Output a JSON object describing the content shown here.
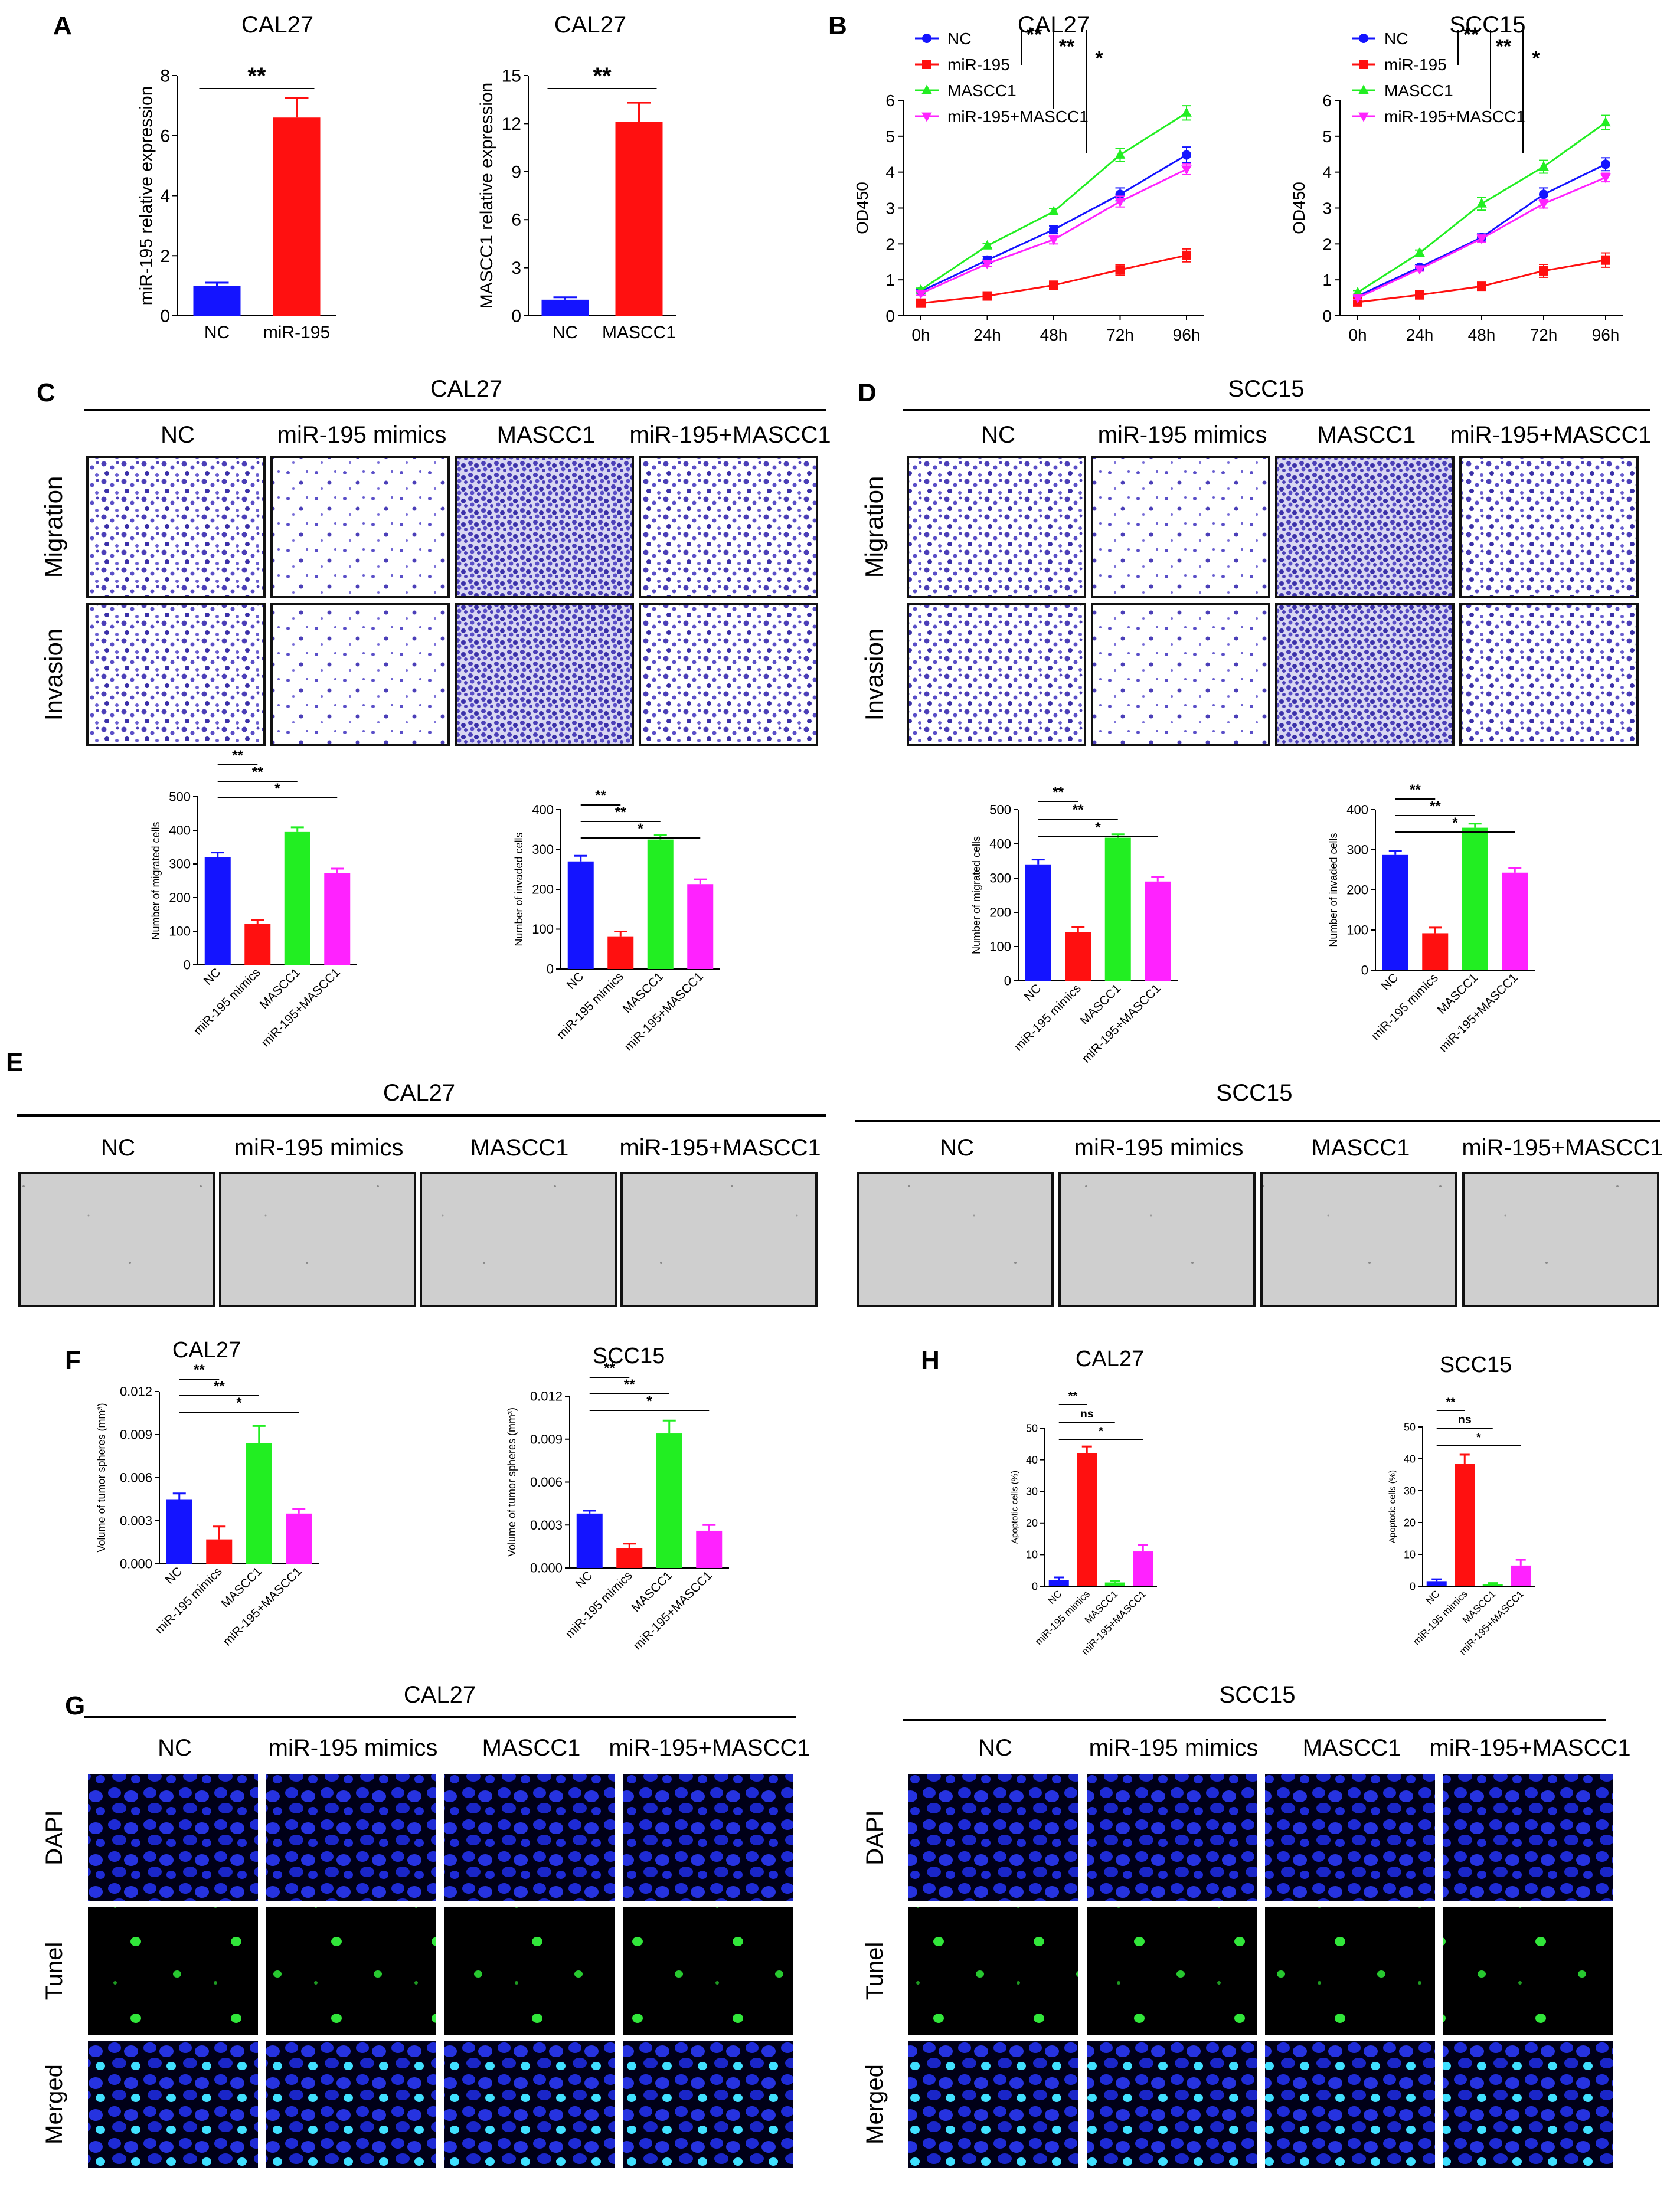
{
  "colors": {
    "blue": "#1414ff",
    "red": "#ff1010",
    "green": "#22ee22",
    "magenta": "#ff22ff",
    "purple": "#4b3fb8",
    "dapi": "#1e2bd6",
    "tunel": "#31e63a",
    "panel_frame": "#111111"
  },
  "panel_letters": {
    "A": "A",
    "B": "B",
    "C": "C",
    "D": "D",
    "E": "E",
    "F": "F",
    "G": "G",
    "H": "H"
  },
  "cells": {
    "cal27": "CAL27",
    "scc15": "SCC15"
  },
  "groups": {
    "nc": "NC",
    "mimics": "miR-195 mimics",
    "mascc1": "MASCC1",
    "combo": "miR-195+MASCC1"
  },
  "rows": {
    "migration": "Migration",
    "invasion": "Invasion",
    "dapi": "DAPI",
    "tunel": "Tunel",
    "merged": "Merged"
  },
  "chart_data": [
    {
      "id": "A1",
      "type": "bar",
      "title": "CAL27",
      "ylabel": "miR-195 relative expression",
      "categories": [
        "NC",
        "miR-195"
      ],
      "values": [
        1.0,
        6.6
      ],
      "errors": [
        0.1,
        0.65
      ],
      "ylim": [
        0,
        8
      ],
      "yticks": [
        0,
        2,
        4,
        6,
        8
      ],
      "colors": [
        "#1414ff",
        "#ff1010"
      ],
      "significance": [
        {
          "from": 0,
          "to": 1,
          "label": "**"
        }
      ]
    },
    {
      "id": "A2",
      "type": "bar",
      "title": "CAL27",
      "ylabel": "MASCC1 relative expression",
      "categories": [
        "NC",
        "MASCC1"
      ],
      "values": [
        1.0,
        12.1
      ],
      "errors": [
        0.15,
        1.2
      ],
      "ylim": [
        0,
        15
      ],
      "yticks": [
        0,
        3,
        6,
        9,
        12,
        15
      ],
      "colors": [
        "#1414ff",
        "#ff1010"
      ],
      "significance": [
        {
          "from": 0,
          "to": 1,
          "label": "**"
        }
      ]
    },
    {
      "id": "B1",
      "type": "line",
      "title": "CAL27",
      "ylabel": "OD450",
      "categories": [
        "0h",
        "24h",
        "48h",
        "72h",
        "96h"
      ],
      "ylim": [
        0,
        6
      ],
      "yticks": [
        0,
        1,
        2,
        3,
        4,
        5,
        6
      ],
      "series": [
        {
          "name": "NC",
          "color": "#1414ff",
          "marker": "circle",
          "values": [
            0.68,
            1.55,
            2.4,
            3.38,
            4.48
          ],
          "errors": [
            0.05,
            0.1,
            0.1,
            0.18,
            0.22
          ]
        },
        {
          "name": "miR-195",
          "color": "#ff1010",
          "marker": "square",
          "values": [
            0.35,
            0.55,
            0.85,
            1.28,
            1.68
          ],
          "errors": [
            0.04,
            0.05,
            0.07,
            0.15,
            0.18
          ]
        },
        {
          "name": "MASCC1",
          "color": "#22ee22",
          "marker": "triangle",
          "values": [
            0.72,
            1.95,
            2.9,
            4.48,
            5.65
          ],
          "errors": [
            0.05,
            0.06,
            0.08,
            0.18,
            0.2
          ]
        },
        {
          "name": "miR-195+MASCC1",
          "color": "#ff22ff",
          "marker": "triangle-down",
          "values": [
            0.62,
            1.45,
            2.12,
            3.18,
            4.08
          ],
          "errors": [
            0.05,
            0.08,
            0.12,
            0.15,
            0.15
          ]
        }
      ],
      "significance": [
        "**",
        "**",
        "*"
      ]
    },
    {
      "id": "B2",
      "type": "line",
      "title": "SCC15",
      "ylabel": "OD450",
      "categories": [
        "0h",
        "24h",
        "48h",
        "72h",
        "96h"
      ],
      "ylim": [
        0,
        6
      ],
      "yticks": [
        0,
        1,
        2,
        3,
        4,
        5,
        6
      ],
      "series": [
        {
          "name": "NC",
          "color": "#1414ff",
          "marker": "circle",
          "values": [
            0.55,
            1.35,
            2.18,
            3.38,
            4.22
          ],
          "errors": [
            0.05,
            0.08,
            0.1,
            0.18,
            0.18
          ]
        },
        {
          "name": "miR-195",
          "color": "#ff1010",
          "marker": "square",
          "values": [
            0.38,
            0.58,
            0.82,
            1.25,
            1.55
          ],
          "errors": [
            0.04,
            0.05,
            0.06,
            0.18,
            0.2
          ]
        },
        {
          "name": "MASCC1",
          "color": "#22ee22",
          "marker": "triangle",
          "values": [
            0.65,
            1.75,
            3.12,
            4.15,
            5.38
          ],
          "errors": [
            0.05,
            0.08,
            0.18,
            0.18,
            0.2
          ]
        },
        {
          "name": "miR-195+MASCC1",
          "color": "#ff22ff",
          "marker": "triangle-down",
          "values": [
            0.5,
            1.3,
            2.15,
            3.12,
            3.85
          ],
          "errors": [
            0.05,
            0.06,
            0.1,
            0.12,
            0.12
          ]
        }
      ],
      "significance": [
        "**",
        "**",
        "*"
      ]
    },
    {
      "id": "C1",
      "type": "bar",
      "title": "CAL27",
      "ylabel": "Number of migrated cells",
      "categories": [
        "NC",
        "miR-195 mimics",
        "MASCC1",
        "miR-195+MASCC1"
      ],
      "values": [
        320,
        122,
        395,
        272
      ],
      "errors": [
        14,
        12,
        14,
        14
      ],
      "ylim": [
        0,
        500
      ],
      "yticks": [
        0,
        100,
        200,
        300,
        400,
        500
      ],
      "colors": [
        "#1414ff",
        "#ff1010",
        "#22ee22",
        "#ff22ff"
      ],
      "significance": [
        {
          "from": 0,
          "to": 1,
          "label": "**"
        },
        {
          "from": 0,
          "to": 2,
          "label": "**"
        },
        {
          "from": 0,
          "to": 3,
          "label": "*"
        }
      ]
    },
    {
      "id": "C2",
      "type": "bar",
      "title": "",
      "ylabel": "Number of invaded cells",
      "categories": [
        "NC",
        "miR-195 mimics",
        "MASCC1",
        "miR-195+MASCC1"
      ],
      "values": [
        270,
        82,
        325,
        213
      ],
      "errors": [
        14,
        12,
        12,
        12
      ],
      "ylim": [
        0,
        400
      ],
      "yticks": [
        0,
        100,
        200,
        300,
        400
      ],
      "colors": [
        "#1414ff",
        "#ff1010",
        "#22ee22",
        "#ff22ff"
      ],
      "significance": [
        {
          "from": 0,
          "to": 1,
          "label": "**"
        },
        {
          "from": 0,
          "to": 2,
          "label": "**"
        },
        {
          "from": 0,
          "to": 3,
          "label": "*"
        }
      ]
    },
    {
      "id": "D1",
      "type": "bar",
      "title": "SCC15",
      "ylabel": "Number of migrated cells",
      "categories": [
        "NC",
        "miR-195 mimics",
        "MASCC1",
        "miR-195+MASCC1"
      ],
      "values": [
        340,
        142,
        418,
        290
      ],
      "errors": [
        14,
        14,
        10,
        14
      ],
      "ylim": [
        0,
        500
      ],
      "yticks": [
        0,
        100,
        200,
        300,
        400,
        500
      ],
      "colors": [
        "#1414ff",
        "#ff1010",
        "#22ee22",
        "#ff22ff"
      ],
      "significance": [
        {
          "from": 0,
          "to": 1,
          "label": "**"
        },
        {
          "from": 0,
          "to": 2,
          "label": "**"
        },
        {
          "from": 0,
          "to": 3,
          "label": "*"
        }
      ]
    },
    {
      "id": "D2",
      "type": "bar",
      "title": "",
      "ylabel": "Number of invaded cells",
      "categories": [
        "NC",
        "miR-195 mimics",
        "MASCC1",
        "miR-195+MASCC1"
      ],
      "values": [
        287,
        92,
        355,
        243
      ],
      "errors": [
        10,
        14,
        10,
        12
      ],
      "ylim": [
        0,
        400
      ],
      "yticks": [
        0,
        100,
        200,
        300,
        400
      ],
      "colors": [
        "#1414ff",
        "#ff1010",
        "#22ee22",
        "#ff22ff"
      ],
      "significance": [
        {
          "from": 0,
          "to": 1,
          "label": "**"
        },
        {
          "from": 0,
          "to": 2,
          "label": "**"
        },
        {
          "from": 0,
          "to": 3,
          "label": "*"
        }
      ]
    },
    {
      "id": "F1",
      "type": "bar",
      "title": "CAL27",
      "ylabel": "Volume of tumor spheres (mm³)",
      "categories": [
        "NC",
        "miR-195 mimics",
        "MASCC1",
        "miR-195+MASCC1"
      ],
      "values": [
        0.0045,
        0.0017,
        0.0084,
        0.0035
      ],
      "errors": [
        0.0004,
        0.0009,
        0.0012,
        0.0003
      ],
      "ylim": [
        0,
        0.012
      ],
      "yticks": [
        0.0,
        0.003,
        0.006,
        0.009,
        0.012
      ],
      "tickdigits": 3,
      "colors": [
        "#1414ff",
        "#ff1010",
        "#22ee22",
        "#ff22ff"
      ],
      "significance": [
        {
          "from": 0,
          "to": 1,
          "label": "**"
        },
        {
          "from": 0,
          "to": 2,
          "label": "**"
        },
        {
          "from": 0,
          "to": 3,
          "label": "*"
        }
      ]
    },
    {
      "id": "F2",
      "type": "bar",
      "title": "SCC15",
      "ylabel": "Volume of tumor spheres (mm³)",
      "categories": [
        "NC",
        "miR-195 mimics",
        "MASCC1",
        "miR-195+MASCC1"
      ],
      "values": [
        0.0038,
        0.0014,
        0.0094,
        0.0026
      ],
      "errors": [
        0.0002,
        0.0003,
        0.0009,
        0.0004
      ],
      "ylim": [
        0,
        0.012
      ],
      "yticks": [
        0.0,
        0.003,
        0.006,
        0.009,
        0.012
      ],
      "tickdigits": 3,
      "colors": [
        "#1414ff",
        "#ff1010",
        "#22ee22",
        "#ff22ff"
      ],
      "significance": [
        {
          "from": 0,
          "to": 1,
          "label": "**"
        },
        {
          "from": 0,
          "to": 2,
          "label": "**"
        },
        {
          "from": 0,
          "to": 3,
          "label": "*"
        }
      ]
    },
    {
      "id": "H1",
      "type": "bar",
      "title": "CAL27",
      "ylabel": "Apoptotic cells (%)",
      "categories": [
        "NC",
        "miR-195 mimics",
        "MASCC1",
        "miR-195+MASCC1"
      ],
      "values": [
        2.0,
        42.0,
        1.2,
        11.0
      ],
      "errors": [
        0.8,
        2.2,
        0.5,
        2.0
      ],
      "ylim": [
        0,
        50
      ],
      "yticks": [
        0,
        10,
        20,
        30,
        40,
        50
      ],
      "colors": [
        "#1414ff",
        "#ff1010",
        "#22ee22",
        "#ff22ff"
      ],
      "significance": [
        {
          "from": 0,
          "to": 1,
          "label": "**"
        },
        {
          "from": 0,
          "to": 2,
          "label": "ns"
        },
        {
          "from": 0,
          "to": 3,
          "label": "*"
        }
      ]
    },
    {
      "id": "H2",
      "type": "bar",
      "title": "SCC15",
      "ylabel": "Apoptotic cells (%)",
      "categories": [
        "NC",
        "miR-195 mimics",
        "MASCC1",
        "miR-195+MASCC1"
      ],
      "values": [
        1.6,
        38.5,
        0.6,
        6.5
      ],
      "errors": [
        0.6,
        2.8,
        0.4,
        1.8
      ],
      "ylim": [
        0,
        50
      ],
      "yticks": [
        0,
        10,
        20,
        30,
        40,
        50
      ],
      "colors": [
        "#1414ff",
        "#ff1010",
        "#22ee22",
        "#ff22ff"
      ],
      "significance": [
        {
          "from": 0,
          "to": 1,
          "label": "**"
        },
        {
          "from": 0,
          "to": 2,
          "label": "ns"
        },
        {
          "from": 0,
          "to": 3,
          "label": "*"
        }
      ]
    }
  ]
}
